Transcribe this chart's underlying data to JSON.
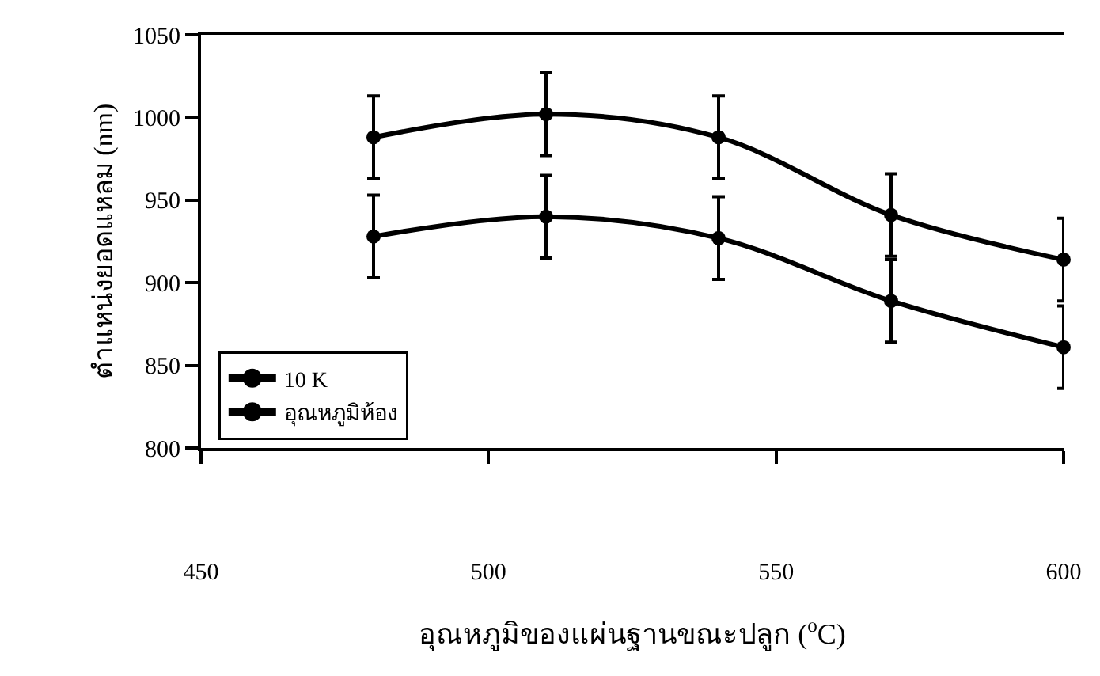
{
  "chart_data": {
    "type": "line",
    "xlabel": "อุณหภูมิของแผ่นฐานขณะปลูก ($^{o}$C)",
    "ylabel": "ตำแหน่งยอดแหลม (nm)",
    "x": [
      480,
      510,
      540,
      570,
      600
    ],
    "series": [
      {
        "name": "10 K",
        "color": "#000000",
        "values": [
          928,
          940,
          927,
          889,
          861
        ],
        "errors": [
          25,
          25,
          25,
          25,
          25
        ]
      },
      {
        "name": "อุณหภูมิห้อง",
        "color": "#000000",
        "values": [
          988,
          1002,
          988,
          941,
          914
        ],
        "errors": [
          25,
          25,
          25,
          25,
          25
        ]
      }
    ],
    "xlim": [
      450,
      600
    ],
    "xticks": [
      450,
      500,
      550,
      600
    ],
    "ylim": [
      800,
      1050
    ],
    "yticks": [
      800,
      850,
      900,
      950,
      1000,
      1050
    ],
    "legend": "bottom left",
    "marker": "circle",
    "line_style": "solid"
  }
}
